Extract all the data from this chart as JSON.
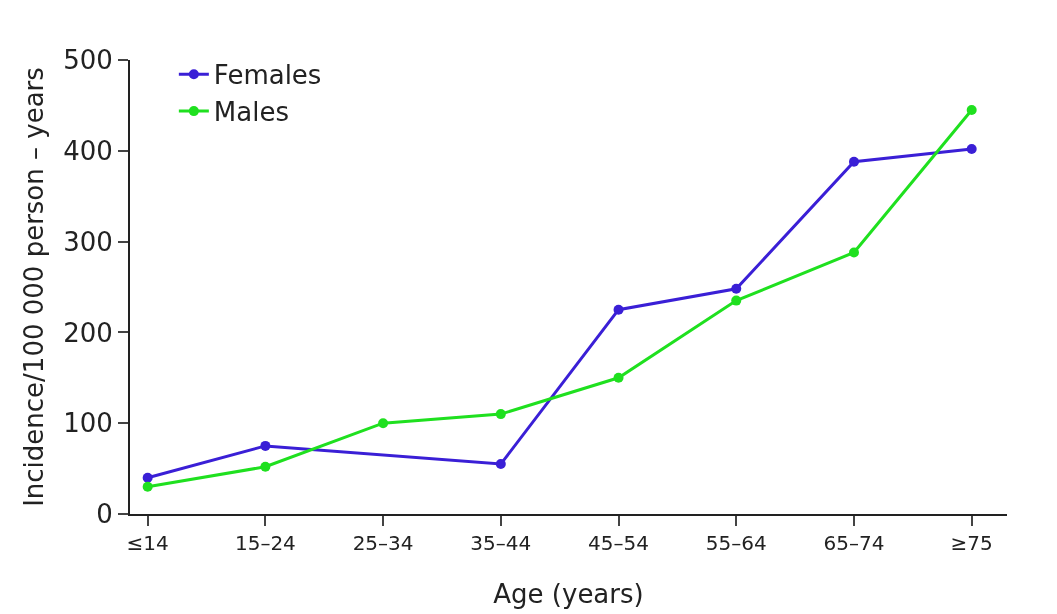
{
  "chart_data": {
    "type": "line",
    "xlabel": "Age (years)",
    "ylabel": "Incidence/100 000 person – years",
    "categories": [
      "≤14",
      "15–24",
      "25–34",
      "35–44",
      "45–54",
      "55–64",
      "65–74",
      "≥75"
    ],
    "series": [
      {
        "name": "Females",
        "color": "#3a1fd6",
        "values": [
          40,
          75,
          null,
          55,
          225,
          248,
          388,
          402
        ]
      },
      {
        "name": "Males",
        "color": "#1fe01f",
        "values": [
          30,
          52,
          100,
          110,
          150,
          235,
          288,
          445
        ]
      }
    ],
    "ylim": [
      0,
      500
    ],
    "yticks": [
      0,
      100,
      200,
      300,
      400,
      500
    ],
    "grid": false,
    "legend": "top left",
    "marker": "circle",
    "line_style": "solid"
  }
}
